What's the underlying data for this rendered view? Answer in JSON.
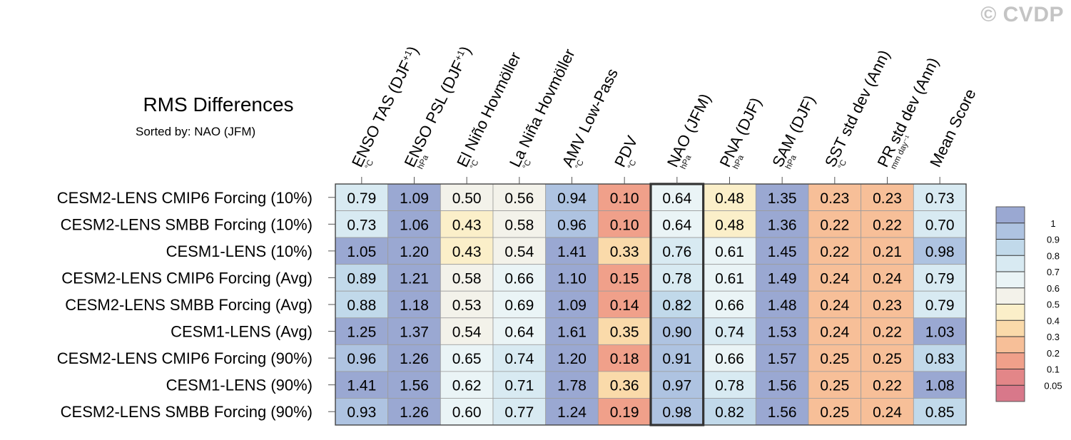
{
  "watermark": "© CVDP",
  "chart_data": {
    "type": "heatmap",
    "title": "RMS Differences",
    "subtitle": "Sorted by: NAO (JFM)",
    "columns": [
      {
        "label": "ENSO TAS (DJF",
        "sup": "+1",
        "close": ")",
        "unit": "°C"
      },
      {
        "label": "ENSO PSL (DJF",
        "sup": "+1",
        "close": ")",
        "unit": "hPa"
      },
      {
        "label": "El Niño Hovmöller",
        "sup": "",
        "close": "",
        "unit": "°C"
      },
      {
        "label": "La Niña Hovmöller",
        "sup": "",
        "close": "",
        "unit": "°C"
      },
      {
        "label": "AMV Low-Pass",
        "sup": "",
        "close": "",
        "unit": "°C"
      },
      {
        "label": "PDV",
        "sup": "",
        "close": "",
        "unit": "°C"
      },
      {
        "label": "NAO (JFM)",
        "sup": "",
        "close": "",
        "unit": "hPa"
      },
      {
        "label": "PNA (DJF)",
        "sup": "",
        "close": "",
        "unit": "hPa"
      },
      {
        "label": "SAM (DJF)",
        "sup": "",
        "close": "",
        "unit": "hPa"
      },
      {
        "label": "SST std dev (Ann)",
        "sup": "",
        "close": "",
        "unit": "°C"
      },
      {
        "label": "PR std dev (Ann)",
        "sup": "",
        "close": "",
        "unit": "mm day⁻¹"
      },
      {
        "label": "Mean Score",
        "sup": "",
        "close": "",
        "unit": ""
      }
    ],
    "rows": [
      "CESM2-LENS CMIP6 Forcing (10%)",
      "CESM2-LENS SMBB Forcing (10%)",
      "CESM1-LENS (10%)",
      "CESM2-LENS CMIP6 Forcing (Avg)",
      "CESM2-LENS SMBB Forcing (Avg)",
      "CESM1-LENS (Avg)",
      "CESM2-LENS CMIP6 Forcing (90%)",
      "CESM1-LENS (90%)",
      "CESM2-LENS SMBB Forcing (90%)"
    ],
    "values": [
      [
        "0.79",
        "1.09",
        "0.50",
        "0.56",
        "0.94",
        "0.10",
        "0.64",
        "0.48",
        "1.35",
        "0.23",
        "0.23",
        "0.73"
      ],
      [
        "0.73",
        "1.06",
        "0.43",
        "0.58",
        "0.96",
        "0.10",
        "0.64",
        "0.48",
        "1.36",
        "0.22",
        "0.22",
        "0.70"
      ],
      [
        "1.05",
        "1.20",
        "0.43",
        "0.54",
        "1.41",
        "0.33",
        "0.76",
        "0.61",
        "1.45",
        "0.22",
        "0.21",
        "0.98"
      ],
      [
        "0.89",
        "1.21",
        "0.58",
        "0.66",
        "1.10",
        "0.15",
        "0.78",
        "0.61",
        "1.49",
        "0.24",
        "0.24",
        "0.79"
      ],
      [
        "0.88",
        "1.18",
        "0.53",
        "0.69",
        "1.09",
        "0.14",
        "0.82",
        "0.66",
        "1.48",
        "0.24",
        "0.23",
        "0.79"
      ],
      [
        "1.25",
        "1.37",
        "0.54",
        "0.64",
        "1.61",
        "0.35",
        "0.90",
        "0.74",
        "1.53",
        "0.24",
        "0.22",
        "1.03"
      ],
      [
        "0.96",
        "1.26",
        "0.65",
        "0.74",
        "1.20",
        "0.18",
        "0.91",
        "0.66",
        "1.57",
        "0.25",
        "0.25",
        "0.83"
      ],
      [
        "1.41",
        "1.56",
        "0.62",
        "0.71",
        "1.78",
        "0.36",
        "0.97",
        "0.78",
        "1.56",
        "0.25",
        "0.22",
        "1.08"
      ],
      [
        "0.93",
        "1.26",
        "0.60",
        "0.77",
        "1.24",
        "0.19",
        "0.98",
        "0.82",
        "1.56",
        "0.25",
        "0.24",
        "0.85"
      ]
    ],
    "highlighted_column": "NAO (JFM)",
    "colorbar": {
      "levels": [
        "1",
        "0.9",
        "0.8",
        "0.7",
        "0.6",
        "0.5",
        "0.4",
        "0.3",
        "0.2",
        "0.1",
        "0.05"
      ],
      "thresholds": [
        1,
        0.9,
        0.8,
        0.7,
        0.6,
        0.5,
        0.4,
        0.3,
        0.2,
        0.1,
        0.05
      ],
      "colors": [
        "#9aa8d2",
        "#aec3e1",
        "#c1d9ea",
        "#d8eaf2",
        "#eaf4f6",
        "#f3f2ea",
        "#fbefc9",
        "#fadaaa",
        "#f7bf98",
        "#f0a08a",
        "#e38688",
        "#d8788a"
      ]
    }
  }
}
